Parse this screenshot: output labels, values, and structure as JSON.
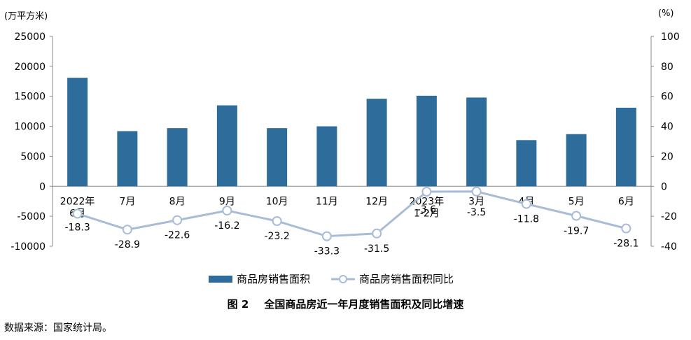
{
  "units": {
    "left": "(万平方米)",
    "right": "(%)"
  },
  "chart_data": {
    "type": "bar+line",
    "categories": [
      "2022年\n6月",
      "7月",
      "8月",
      "9月",
      "10月",
      "11月",
      "12月",
      "2023年\n1-2月",
      "3月",
      "4月",
      "5月",
      "6月"
    ],
    "series": [
      {
        "name": "商品房销售面积",
        "type": "bar",
        "axis": "left",
        "values": [
          18100,
          9200,
          9700,
          13500,
          9700,
          10000,
          14600,
          15100,
          14800,
          7700,
          8700,
          13100
        ]
      },
      {
        "name": "商品房销售面积同比",
        "type": "line",
        "axis": "right",
        "values": [
          -18.3,
          -28.9,
          -22.6,
          -16.2,
          -23.2,
          -33.3,
          -31.5,
          -3.6,
          -3.5,
          -11.8,
          -19.7,
          -28.1
        ],
        "labels": [
          "-18.3",
          "-28.9",
          "-22.6",
          "-16.2",
          "-23.2",
          "-33.3",
          "-31.5",
          "-3.6",
          "-3.5",
          "-11.8",
          "-19.7",
          "-28.1"
        ]
      }
    ],
    "y_left": {
      "min": -10000,
      "max": 25000,
      "ticks": [
        "-10000",
        "-5000",
        "0",
        "5000",
        "10000",
        "15000",
        "20000",
        "25000"
      ]
    },
    "y_right": {
      "min": -40,
      "max": 100,
      "ticks": [
        "-40",
        "-20",
        "0",
        "20",
        "40",
        "60",
        "80",
        "100"
      ]
    },
    "colors": {
      "bar": "#2e6c9c",
      "line": "#a9bcd6"
    },
    "legend_position": "bottom"
  },
  "caption": {
    "fig": "图 2",
    "title": "全国商品房近一年月度销售面积及同比增速"
  },
  "source": "数据来源：国家统计局。"
}
